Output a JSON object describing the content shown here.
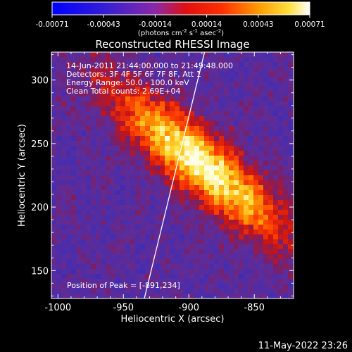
{
  "colorbar": {
    "tick_labels": [
      "-0.00071",
      "-0.00043",
      "-0.00014",
      "0.00014",
      "0.00043",
      "0.00071"
    ],
    "units_parts": [
      "(photons cm",
      "-2",
      " s",
      "-1",
      " asec",
      "-2",
      ")"
    ]
  },
  "image": {
    "title": "Reconstructed RHESSI Image",
    "annotation_lines": [
      "14-Jun-2011 21:44:00.000 to 21:49:48.000",
      "Detectors: 3F 4F 5F 6F 7F 8F, Att 1",
      "Energy Range: 50.0 - 100.0 keV",
      "Clean     Total counts: 2.69E+04"
    ],
    "peak_label": "Position of Peak = [-891,234]",
    "x_axis": {
      "label": "Heliocentric X (arcsec)",
      "range": [
        -1005,
        -820
      ],
      "ticks": [
        -1000,
        -950,
        -900,
        -850
      ],
      "tick_labels": [
        "-1000",
        "-950",
        "-900",
        "-850"
      ]
    },
    "y_axis": {
      "label": "Heliocentric Y (arcsec)",
      "range": [
        128,
        322
      ],
      "ticks": [
        150,
        200,
        250,
        300
      ],
      "tick_labels": [
        "150",
        "200",
        "250",
        "300"
      ]
    },
    "limb_line": {
      "from": [
        -934,
        128
      ],
      "to": [
        -888,
        322
      ]
    },
    "peak_position": [
      -891,
      234
    ]
  },
  "footer": {
    "timestamp": "11-May-2022 23:26"
  }
}
